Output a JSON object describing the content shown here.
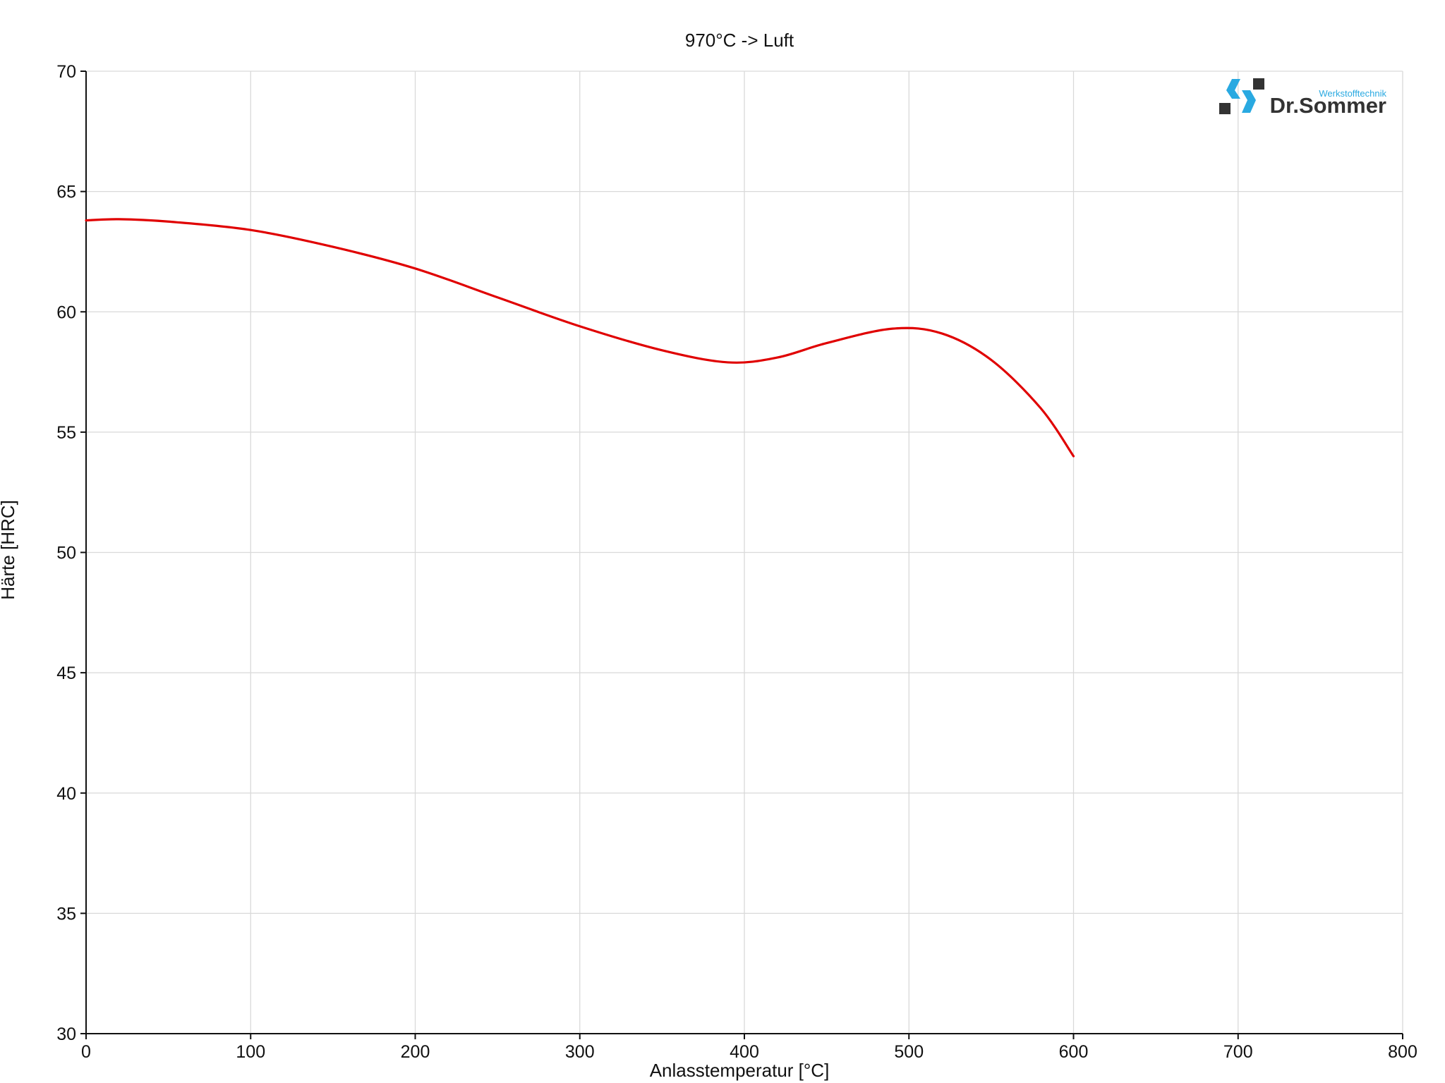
{
  "chart_data": {
    "type": "line",
    "title": "970°C -> Luft",
    "xlabel": "Anlasstemperatur [°C]",
    "ylabel": "Härte [HRC]",
    "xlim": [
      0,
      800
    ],
    "ylim": [
      30,
      70
    ],
    "xticks": [
      0,
      100,
      200,
      300,
      400,
      500,
      600,
      700,
      800
    ],
    "yticks": [
      30,
      35,
      40,
      45,
      50,
      55,
      60,
      65,
      70
    ],
    "grid": true,
    "series": [
      {
        "color": "#e00000",
        "x": [
          0,
          20,
          50,
          100,
          150,
          200,
          250,
          300,
          350,
          390,
          420,
          450,
          490,
          520,
          550,
          580,
          600
        ],
        "y": [
          63.8,
          63.85,
          63.75,
          63.4,
          62.7,
          61.8,
          60.6,
          59.4,
          58.4,
          57.9,
          58.1,
          58.7,
          59.3,
          59.1,
          58.0,
          56.0,
          54.0
        ]
      }
    ]
  },
  "logo": {
    "subtitle": "Werkstofftechnik",
    "name": "Dr.Sommer",
    "brand_color": "#29a9e1",
    "dark_color": "#333333"
  }
}
